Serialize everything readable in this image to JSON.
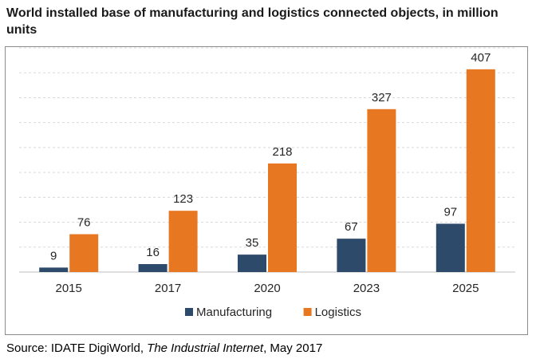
{
  "title": "World installed base of manufacturing and logistics connected objects, in million units",
  "source": {
    "prefix": "Source: IDATE DigiWorld, ",
    "italic": "The Industrial Internet",
    "suffix": ", May 2017"
  },
  "chart_data": {
    "type": "bar",
    "categories": [
      "2015",
      "2017",
      "2020",
      "2023",
      "2025"
    ],
    "series": [
      {
        "name": "Manufacturing",
        "values": [
          9,
          16,
          35,
          67,
          97
        ],
        "color": "#2e4a6b"
      },
      {
        "name": "Logistics",
        "values": [
          76,
          123,
          218,
          327,
          407
        ],
        "color": "#e87722"
      }
    ],
    "title": "World installed base of manufacturing and logistics connected objects, in million units",
    "xlabel": "",
    "ylabel": "",
    "ylim": [
      0,
      450
    ],
    "grid": true,
    "legend": "bottom",
    "data_labels": true
  }
}
